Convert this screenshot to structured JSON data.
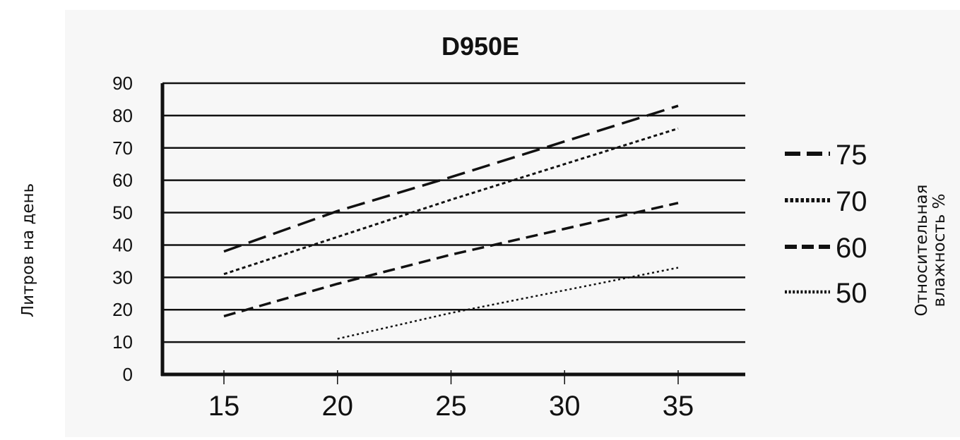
{
  "chart_data": {
    "type": "line",
    "title": "D950E",
    "xlabel": "",
    "ylabel": "Литров на день",
    "legend_title_lines": [
      "Относительная",
      "влажность %"
    ],
    "xlim": [
      15,
      35
    ],
    "ylim": [
      0,
      90
    ],
    "x_ticks": [
      "15",
      "20",
      "25",
      "30",
      "35"
    ],
    "y_ticks": [
      "0",
      "10",
      "20",
      "30",
      "40",
      "50",
      "60",
      "70",
      "80",
      "90"
    ],
    "grid": "horizontal",
    "legend_position": "right",
    "series": [
      {
        "name": "75",
        "style": "long-dash",
        "x": [
          15,
          20,
          25,
          30,
          35
        ],
        "y": [
          38,
          50.5,
          61,
          72,
          83
        ]
      },
      {
        "name": "70",
        "style": "dotted",
        "x": [
          15,
          20,
          25,
          30,
          35
        ],
        "y": [
          31,
          42.5,
          54,
          65,
          76
        ]
      },
      {
        "name": "60",
        "style": "dash",
        "x": [
          15,
          20,
          25,
          30,
          35
        ],
        "y": [
          18,
          28,
          37,
          45,
          53
        ]
      },
      {
        "name": "50",
        "style": "fine-dot",
        "x": [
          20,
          25,
          30,
          35
        ],
        "y": [
          11,
          19,
          26,
          33
        ]
      }
    ],
    "colors": {
      "line": "#111111",
      "background": "#f7f7f7"
    }
  }
}
